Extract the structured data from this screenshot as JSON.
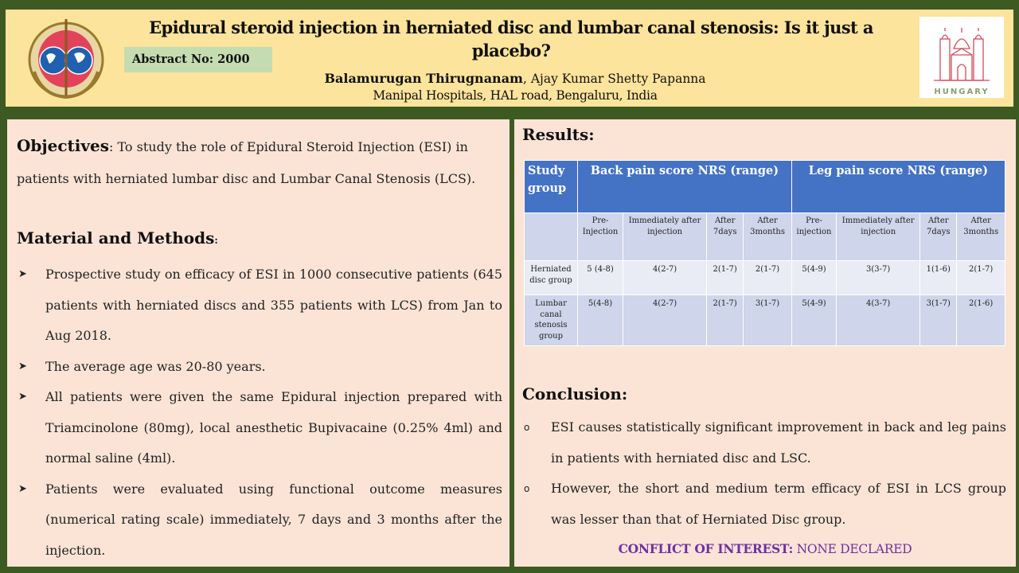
{
  "header": {
    "title": "Epidural steroid injection in herniated disc and lumbar canal stenosis: Is it just a placebo?",
    "abstract_no": "Abstract No: 2000",
    "author_main": "Balamurugan  Thirugnanam",
    "author_sep": ", ",
    "author_other": "Ajay Kumar Shetty Papanna",
    "affiliation": "Manipal Hospitals, HAL road, Bengaluru, India",
    "right_logo_text": "HUNGARY"
  },
  "left": {
    "objectives_label": "Objectives",
    "objectives_text": ": To study the role of Epidural Steroid Injection (ESI) in patients with herniated lumbar disc and Lumbar Canal Stenosis (LCS).",
    "methods_title": "Material and Methods",
    "methods_colon": ":",
    "bullets": [
      "Prospective study on efficacy of ESI in 1000 consecutive patients (645 patients with herniated discs and 355 patients with LCS) from Jan to Aug 2018.",
      "The average age was 20-80 years.",
      "All patients were given the same Epidural injection prepared with Triamcinolone (80mg), local anesthetic Bupivacaine (0.25% 4ml) and normal saline (4ml).",
      "Patients were evaluated using functional outcome measures (numerical rating scale) immediately, 7 days and 3 months after the injection."
    ]
  },
  "right": {
    "results_title": "Results:",
    "table": {
      "header_group": "Study group",
      "header_back": "Back pain score NRS (range)",
      "header_leg": "Leg pain score NRS (range)",
      "subheaders": [
        "Pre-Injection",
        "Immediately after injection",
        "After 7days",
        "After 3months",
        "Pre-injection",
        "Immediately after injection",
        "After 7days",
        "After 3months"
      ],
      "rows": [
        {
          "group": "Herniated disc group",
          "values": [
            "5 (4-8)",
            "4(2-7)",
            "2(1-7)",
            "2(1-7)",
            "5(4-9)",
            "3(3-7)",
            "1(1-6)",
            "2(1-7)"
          ]
        },
        {
          "group": "Lumbar canal stenosis group",
          "values": [
            "5(4-8)",
            "4(2-7)",
            "2(1-7)",
            "3(1-7)",
            "5(4-9)",
            "4(3-7)",
            "3(1-7)",
            "2(1-6)"
          ]
        }
      ]
    },
    "conclusion_title": "Conclusion:",
    "conclusions": [
      "ESI causes statistically significant improvement in back and leg pains in patients with herniated disc and LSC.",
      "However, the short and medium term efficacy of ESI in LCS group was lesser than that of Herniated Disc group."
    ],
    "coi_label": "CONFLICT OF INTEREST:",
    "coi_value": " NONE DECLARED"
  },
  "colors": {
    "frame": "#3d5a22",
    "header_bg": "#fde49c",
    "panel_bg": "#fbe4d6",
    "table_header": "#4472c4",
    "coi": "#7030a0"
  },
  "icons": {
    "bullet": "arrowhead-icon",
    "conclusion_bullet": "circle-bullet-icon"
  }
}
